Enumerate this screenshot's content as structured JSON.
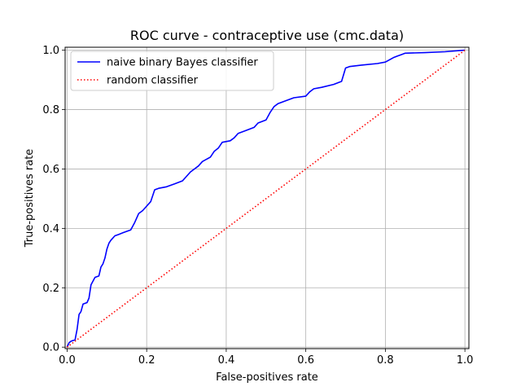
{
  "chart_data": {
    "type": "line",
    "title": "ROC curve - contraceptive use (cmc.data)",
    "xlabel": "False-positives rate",
    "ylabel": "True-positives rate",
    "xlim": [
      -0.005,
      1.01
    ],
    "ylim": [
      -0.005,
      1.01
    ],
    "xticks": [
      "0.0",
      "0.2",
      "0.4",
      "0.6",
      "0.8",
      "1.0"
    ],
    "yticks": [
      "0.0",
      "0.2",
      "0.4",
      "0.6",
      "0.8",
      "1.0"
    ],
    "grid": true,
    "legend_position": "top-left",
    "series": [
      {
        "name": "naive binary Bayes classifier",
        "color": "#0000ff",
        "style": "solid",
        "points": [
          [
            0.0,
            0.0
          ],
          [
            0.005,
            0.015
          ],
          [
            0.01,
            0.02
          ],
          [
            0.02,
            0.025
          ],
          [
            0.025,
            0.06
          ],
          [
            0.03,
            0.11
          ],
          [
            0.035,
            0.12
          ],
          [
            0.04,
            0.145
          ],
          [
            0.05,
            0.15
          ],
          [
            0.055,
            0.165
          ],
          [
            0.06,
            0.21
          ],
          [
            0.07,
            0.235
          ],
          [
            0.08,
            0.24
          ],
          [
            0.085,
            0.27
          ],
          [
            0.09,
            0.28
          ],
          [
            0.095,
            0.3
          ],
          [
            0.1,
            0.33
          ],
          [
            0.105,
            0.35
          ],
          [
            0.11,
            0.36
          ],
          [
            0.12,
            0.375
          ],
          [
            0.13,
            0.38
          ],
          [
            0.14,
            0.385
          ],
          [
            0.15,
            0.39
          ],
          [
            0.16,
            0.395
          ],
          [
            0.17,
            0.42
          ],
          [
            0.18,
            0.45
          ],
          [
            0.19,
            0.46
          ],
          [
            0.2,
            0.475
          ],
          [
            0.21,
            0.49
          ],
          [
            0.22,
            0.53
          ],
          [
            0.23,
            0.535
          ],
          [
            0.25,
            0.54
          ],
          [
            0.27,
            0.55
          ],
          [
            0.29,
            0.56
          ],
          [
            0.3,
            0.575
          ],
          [
            0.31,
            0.59
          ],
          [
            0.33,
            0.61
          ],
          [
            0.34,
            0.625
          ],
          [
            0.36,
            0.64
          ],
          [
            0.37,
            0.66
          ],
          [
            0.38,
            0.67
          ],
          [
            0.39,
            0.69
          ],
          [
            0.41,
            0.695
          ],
          [
            0.42,
            0.705
          ],
          [
            0.43,
            0.72
          ],
          [
            0.45,
            0.73
          ],
          [
            0.47,
            0.74
          ],
          [
            0.48,
            0.755
          ],
          [
            0.5,
            0.765
          ],
          [
            0.51,
            0.79
          ],
          [
            0.52,
            0.81
          ],
          [
            0.53,
            0.82
          ],
          [
            0.55,
            0.83
          ],
          [
            0.57,
            0.84
          ],
          [
            0.6,
            0.845
          ],
          [
            0.61,
            0.86
          ],
          [
            0.62,
            0.87
          ],
          [
            0.64,
            0.875
          ],
          [
            0.67,
            0.885
          ],
          [
            0.69,
            0.895
          ],
          [
            0.7,
            0.94
          ],
          [
            0.71,
            0.945
          ],
          [
            0.74,
            0.95
          ],
          [
            0.78,
            0.955
          ],
          [
            0.8,
            0.96
          ],
          [
            0.82,
            0.975
          ],
          [
            0.83,
            0.98
          ],
          [
            0.84,
            0.985
          ],
          [
            0.85,
            0.99
          ],
          [
            0.9,
            0.992
          ],
          [
            0.95,
            0.995
          ],
          [
            1.0,
            1.0
          ]
        ]
      },
      {
        "name": "random classifier",
        "color": "#ff0000",
        "style": "dotted",
        "points": [
          [
            0.0,
            0.0
          ],
          [
            1.0,
            1.0
          ]
        ]
      }
    ]
  }
}
